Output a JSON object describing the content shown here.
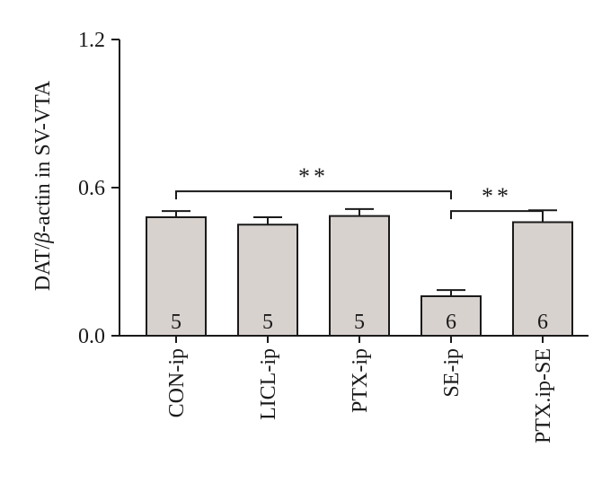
{
  "chart_data": {
    "type": "bar",
    "categories": [
      "CON-ip",
      "LICL-ip",
      "PTX-ip",
      "SE-ip",
      "PTX.ip-SE"
    ],
    "values": [
      0.48,
      0.45,
      0.485,
      0.16,
      0.46
    ],
    "errors": [
      0.025,
      0.03,
      0.028,
      0.025,
      0.048
    ],
    "n_labels": [
      "5",
      "5",
      "5",
      "6",
      "6"
    ],
    "ylabel_prefix": "DAT/",
    "ylabel_symbol": "β",
    "ylabel_suffix": "-actin in SV-VTA",
    "ylim": [
      0,
      1.2
    ],
    "yticks": [
      0.0,
      0.6,
      1.2
    ],
    "ytick_labels": [
      "0.0",
      "0.6",
      "1.2"
    ],
    "significance": [
      {
        "from": 0,
        "to": 3,
        "label": "**"
      },
      {
        "from": 3,
        "to": 4,
        "label": "**"
      }
    ],
    "bar_color": "#d8d2cf",
    "edge_color": "#1a1a1a",
    "grid": false
  }
}
